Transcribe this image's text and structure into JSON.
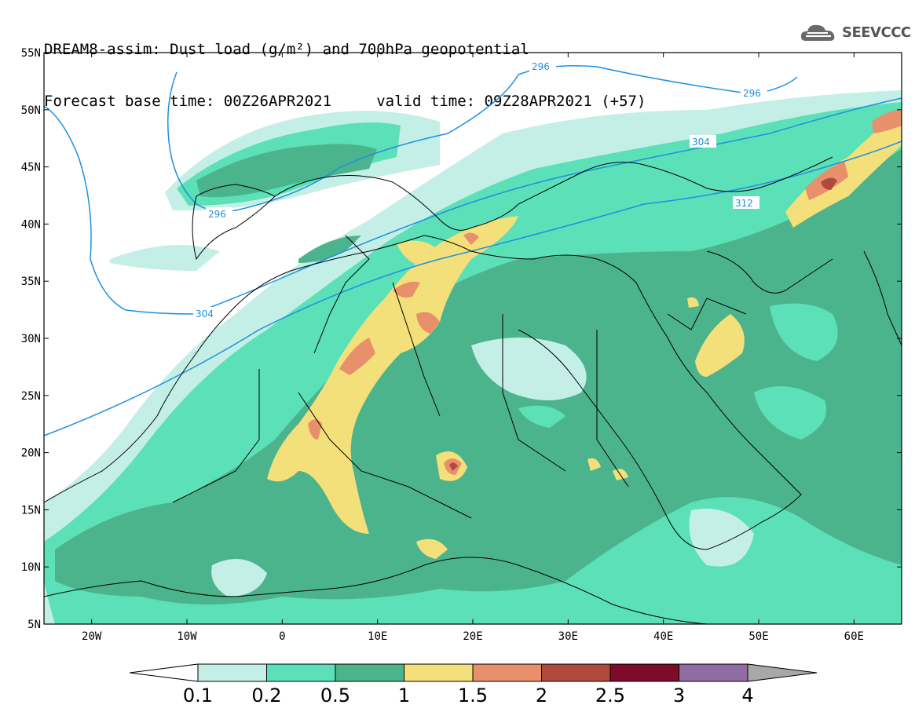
{
  "header": {
    "line1": "DREAM8-assim: Dust load (g/m²) and 700hPa geopotential",
    "line2": "Forecast base time: 00Z26APR2021     valid time: 09Z28APR2021 (+57)"
  },
  "logo": {
    "text": "SEEVCCC",
    "icon": "cloud-icon"
  },
  "map": {
    "lon_range": [
      -25,
      65
    ],
    "lat_range": [
      5,
      55
    ],
    "lat_ticks": [
      "55N",
      "50N",
      "45N",
      "40N",
      "35N",
      "30N",
      "25N",
      "20N",
      "15N",
      "10N",
      "5N"
    ],
    "lon_ticks": [
      "20W",
      "10W",
      "0",
      "10E",
      "20E",
      "30E",
      "40E",
      "50E",
      "60E"
    ],
    "contour_color": "#1e90e0",
    "contour_labels": [
      "296",
      "296",
      "296",
      "304",
      "304",
      "312"
    ]
  },
  "colorbar": {
    "colors": [
      "#c4efe6",
      "#5ce0b8",
      "#4cb48c",
      "#f4e07a",
      "#e8906c",
      "#b04a3c",
      "#7c0c2a",
      "#906ca4"
    ],
    "left_arrow_color": "#ffffff",
    "right_arrow_color": "#a8a8a8",
    "labels": [
      "0.1",
      "0.2",
      "0.5",
      "1",
      "1.5",
      "2",
      "2.5",
      "3",
      "4"
    ]
  }
}
